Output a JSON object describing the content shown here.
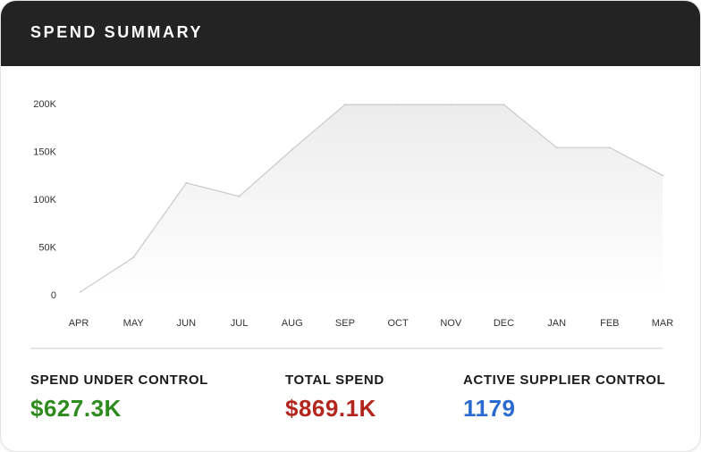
{
  "header": {
    "title": "SPEND SUMMARY"
  },
  "chart_data": {
    "type": "area",
    "title": "",
    "xlabel": "",
    "ylabel": "",
    "categories": [
      "APR",
      "MAY",
      "JUN",
      "JUL",
      "AUG",
      "SEP",
      "OCT",
      "NOV",
      "DEC",
      "JAN",
      "FEB",
      "MAR"
    ],
    "values": [
      3000,
      39000,
      117000,
      103000,
      152000,
      199000,
      199000,
      199000,
      199000,
      154000,
      154000,
      125000
    ],
    "ylim": [
      0,
      200000
    ],
    "y_ticks": [
      0,
      50000,
      100000,
      150000,
      200000
    ],
    "y_tick_labels": [
      "0",
      "50K",
      "100K",
      "150K",
      "200K"
    ],
    "grid": false,
    "line_color": "#c9c9c9",
    "fill_color": "#eeeeee"
  },
  "kpis": [
    {
      "label": "SPEND UNDER CONTROL",
      "value": "$627.3K",
      "color": "#2e8b1e"
    },
    {
      "label": "TOTAL SPEND",
      "value": "$869.1K",
      "color": "#b3261e"
    },
    {
      "label": "ACTIVE SUPPLIER CONTROL",
      "value": "1179",
      "color": "#2b6bd1"
    }
  ]
}
